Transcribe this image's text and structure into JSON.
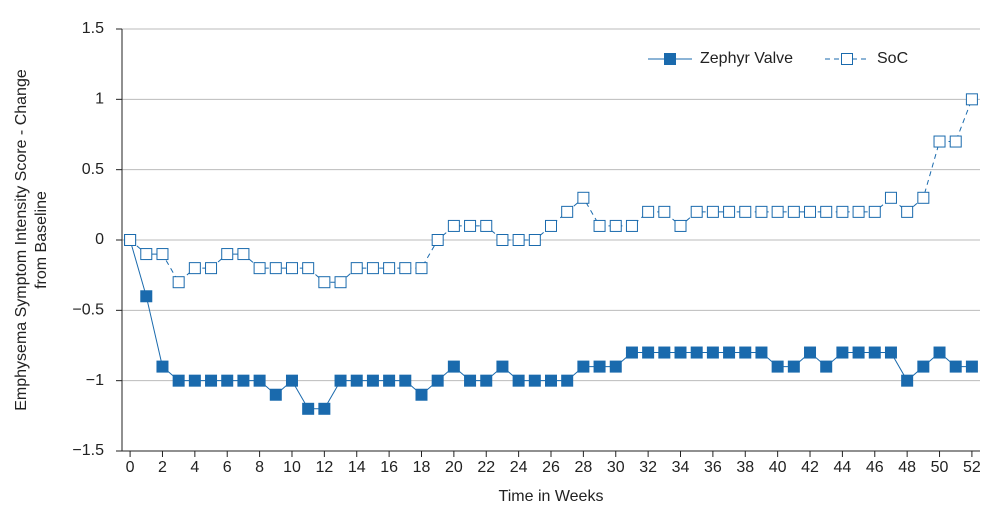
{
  "chart_data": {
    "type": "line",
    "y_label": [
      "Emphysema Symptom Intensity Score - Change",
      "from Baseline"
    ],
    "x_label": "Time in Weeks",
    "x": [
      0,
      1,
      2,
      3,
      4,
      5,
      6,
      7,
      8,
      9,
      10,
      11,
      12,
      13,
      14,
      15,
      16,
      17,
      18,
      19,
      20,
      21,
      22,
      23,
      24,
      25,
      26,
      27,
      28,
      29,
      30,
      31,
      32,
      33,
      34,
      35,
      36,
      37,
      38,
      39,
      40,
      41,
      42,
      43,
      44,
      45,
      46,
      47,
      48,
      49,
      50,
      51,
      52
    ],
    "series": [
      {
        "name": "Zephyr Valve",
        "color": "#1a6aad",
        "line_style": "solid",
        "marker_filled": true,
        "values": [
          0,
          -0.4,
          -0.9,
          -1,
          -1,
          -1,
          -1,
          -1,
          -1,
          -1.1,
          -1,
          -1.2,
          -1.2,
          -1,
          -1,
          -1,
          -1,
          -1,
          -1.1,
          -1,
          -0.9,
          -1,
          -1,
          -0.9,
          -1,
          -1,
          -1,
          -1,
          -0.9,
          -0.9,
          -0.9,
          -0.8,
          -0.8,
          -0.8,
          -0.8,
          -0.8,
          -0.8,
          -0.8,
          -0.8,
          -0.8,
          -0.9,
          -0.9,
          -0.8,
          -0.9,
          -0.8,
          -0.8,
          -0.8,
          -0.8,
          -1,
          -0.9,
          -0.8,
          -0.9,
          -0.9
        ]
      },
      {
        "name": "SoC",
        "color": "#1a6aad",
        "line_style": "dashed",
        "marker_filled": false,
        "values": [
          0,
          -0.1,
          -0.1,
          -0.3,
          -0.2,
          -0.2,
          -0.1,
          -0.1,
          -0.2,
          -0.2,
          -0.2,
          -0.2,
          -0.3,
          -0.3,
          -0.2,
          -0.2,
          -0.2,
          -0.2,
          -0.2,
          0,
          0.1,
          0.1,
          0.1,
          0,
          0,
          0,
          0.1,
          0.2,
          0.3,
          0.1,
          0.1,
          0.1,
          0.2,
          0.2,
          0.1,
          0.2,
          0.2,
          0.2,
          0.2,
          0.2,
          0.2,
          0.2,
          0.2,
          0.2,
          0.2,
          0.2,
          0.2,
          0.3,
          0.2,
          0.3,
          0.7,
          0.7,
          1
        ]
      }
    ],
    "xlim": [
      -0.5,
      52.5
    ],
    "xticks": [
      0,
      2,
      4,
      6,
      8,
      10,
      12,
      14,
      16,
      18,
      20,
      22,
      24,
      26,
      28,
      30,
      32,
      34,
      36,
      38,
      40,
      42,
      44,
      46,
      48,
      50,
      52
    ],
    "ylim": [
      -1.5,
      1.5
    ],
    "yticks": [
      {
        "value": -1.5,
        "label": "−1.5"
      },
      {
        "value": -1,
        "label": "−1"
      },
      {
        "value": -0.5,
        "label": "−0.5"
      },
      0,
      0.5,
      1,
      1.5
    ],
    "grid": true,
    "legend": "top-right"
  }
}
